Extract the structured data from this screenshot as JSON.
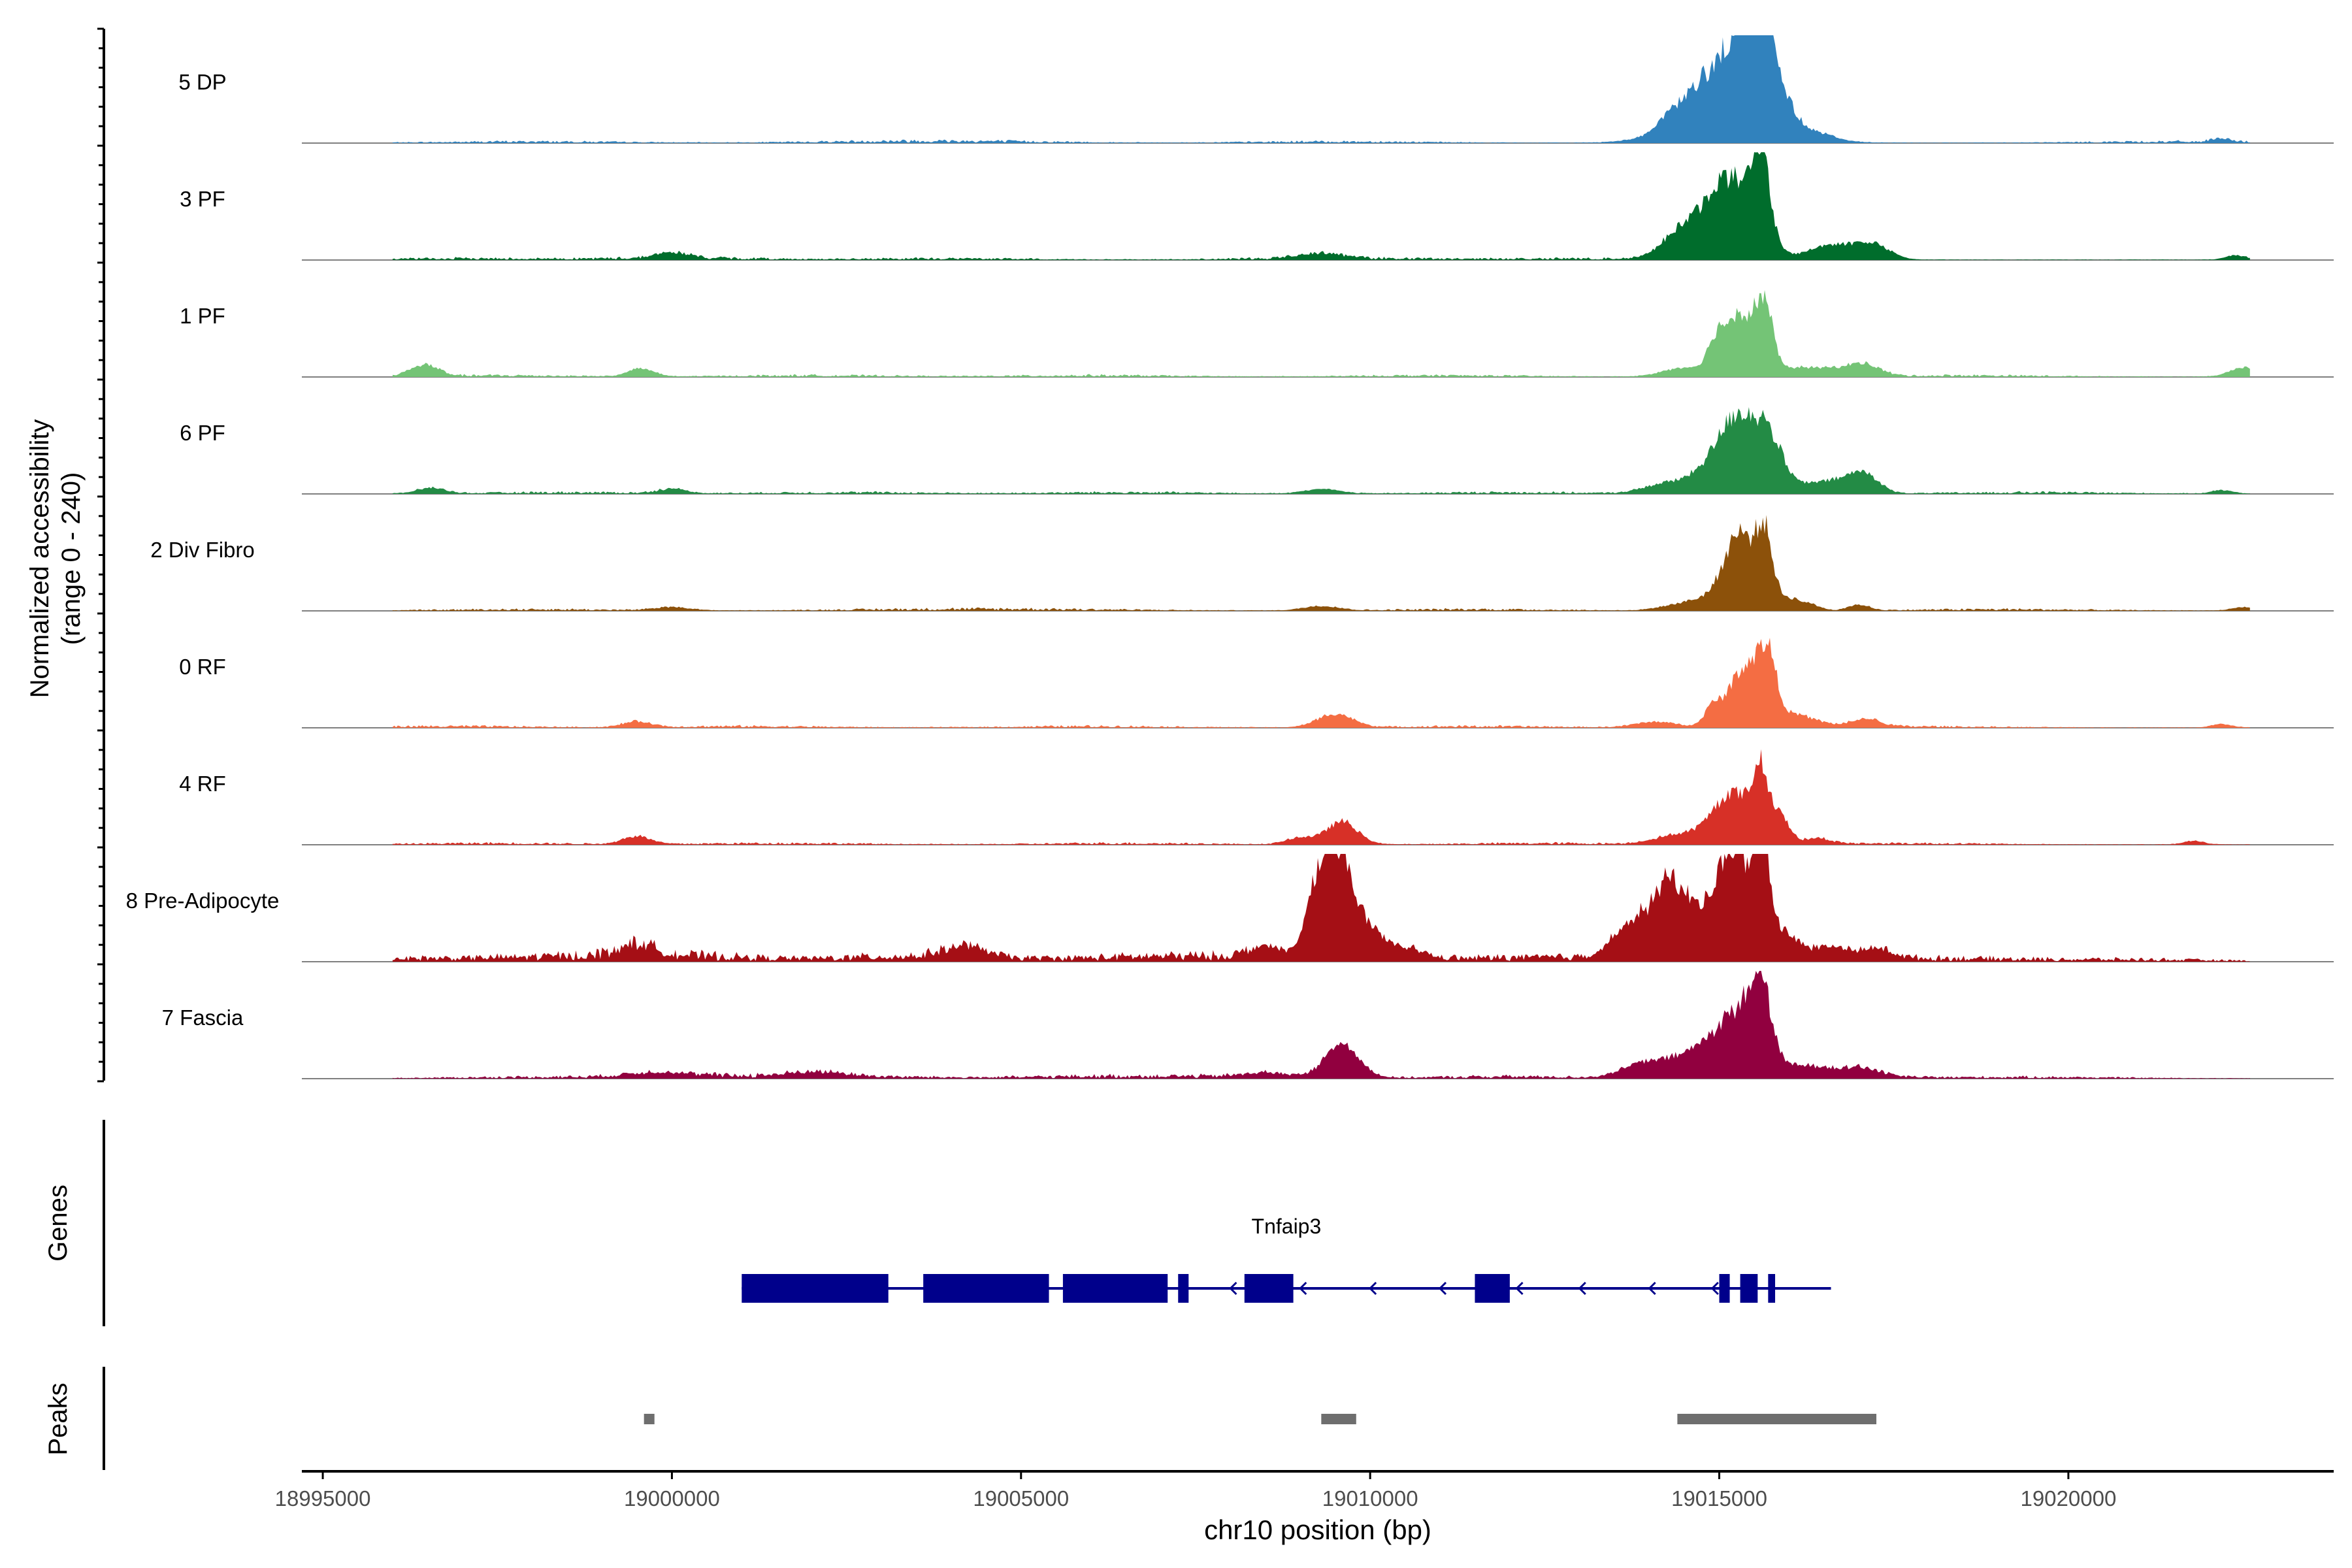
{
  "chart_data": {
    "type": "area",
    "title": "",
    "ylabel_line1": "Normalized accessibility",
    "ylabel_line2": "(range 0 - 240)",
    "xlabel": "chr10 position (bp)",
    "xlim": [
      18994700,
      19023800
    ],
    "ylim": [
      0,
      240
    ],
    "xticks": [
      18995000,
      19000000,
      19005000,
      19010000,
      19015000,
      19020000
    ],
    "xtick_labels": [
      "18995000",
      "19000000",
      "19005000",
      "19010000",
      "19015000",
      "19020000"
    ],
    "series": [
      {
        "name": "5 DP",
        "color": "#3182bd",
        "bg": [
          [
            18998000,
            2
          ],
          [
            19003000,
            2
          ],
          [
            19004500,
            2
          ],
          [
            19009500,
            2
          ],
          [
            19021500,
            2
          ]
        ],
        "peaks": [
          [
            19014300,
            180,
            6
          ],
          [
            19014700,
            250,
            8
          ],
          [
            19015000,
            450,
            18
          ],
          [
            19015200,
            650,
            38
          ],
          [
            19015450,
            300,
            55
          ],
          [
            19015600,
            130,
            48
          ],
          [
            19015800,
            220,
            14
          ],
          [
            19016500,
            200,
            3
          ],
          [
            19022200,
            150,
            3
          ]
        ]
      },
      {
        "name": "3 PF",
        "color": "#006d2c",
        "bg": [
          [
            18997000,
            2
          ],
          [
            19000100,
            3
          ],
          [
            19004000,
            2
          ],
          [
            19009400,
            3
          ],
          [
            19012800,
            2
          ]
        ],
        "peaks": [
          [
            19000000,
            250,
            5
          ],
          [
            19009300,
            300,
            5
          ],
          [
            19014400,
            250,
            14
          ],
          [
            19014900,
            450,
            18
          ],
          [
            19015200,
            350,
            58
          ],
          [
            19015600,
            120,
            70
          ],
          [
            19016500,
            250,
            10
          ],
          [
            19017000,
            300,
            11
          ],
          [
            19017300,
            200,
            6
          ],
          [
            19022400,
            150,
            4
          ]
        ]
      },
      {
        "name": "1 PF",
        "color": "#74c476",
        "bg": [
          [
            18997500,
            2
          ],
          [
            19002000,
            2
          ],
          [
            19006000,
            2
          ],
          [
            19011000,
            2
          ],
          [
            19018500,
            2
          ]
        ],
        "peaks": [
          [
            18996450,
            200,
            10
          ],
          [
            18999550,
            180,
            7
          ],
          [
            19014500,
            300,
            8
          ],
          [
            19014950,
            120,
            20
          ],
          [
            19015300,
            230,
            55
          ],
          [
            19015650,
            120,
            50
          ],
          [
            19016200,
            350,
            8
          ],
          [
            19016800,
            250,
            4
          ],
          [
            19017100,
            220,
            9
          ],
          [
            19022500,
            200,
            8
          ]
        ]
      },
      {
        "name": "6 PF",
        "color": "#238b45",
        "bg": [
          [
            18998500,
            2
          ],
          [
            19002500,
            2
          ],
          [
            19006500,
            2
          ],
          [
            19012000,
            2
          ],
          [
            19019500,
            2
          ]
        ],
        "peaks": [
          [
            18996550,
            200,
            5
          ],
          [
            19000000,
            200,
            4
          ],
          [
            19009300,
            250,
            4
          ],
          [
            19014200,
            300,
            8
          ],
          [
            19014700,
            250,
            10
          ],
          [
            19015000,
            230,
            22
          ],
          [
            19015300,
            230,
            55
          ],
          [
            19015700,
            200,
            48
          ],
          [
            19016300,
            300,
            8
          ],
          [
            19016800,
            250,
            9
          ],
          [
            19017100,
            200,
            14
          ],
          [
            19022200,
            150,
            3
          ]
        ]
      },
      {
        "name": "2 Div Fibro",
        "color": "#8c510a",
        "bg": [
          [
            18998000,
            2
          ],
          [
            19003500,
            2
          ],
          [
            19005500,
            2
          ],
          [
            19011500,
            2
          ],
          [
            19019000,
            2
          ]
        ],
        "peaks": [
          [
            19000000,
            250,
            3
          ],
          [
            19009300,
            250,
            4
          ],
          [
            19014500,
            300,
            6
          ],
          [
            19015000,
            250,
            12
          ],
          [
            19015300,
            200,
            62
          ],
          [
            19015650,
            120,
            62
          ],
          [
            19016000,
            150,
            10
          ],
          [
            19016300,
            150,
            5
          ],
          [
            19017000,
            150,
            5
          ],
          [
            19022500,
            150,
            3
          ]
        ]
      },
      {
        "name": "0 RF",
        "color": "#f46d43",
        "bg": [
          [
            18996800,
            2
          ],
          [
            19001000,
            2
          ],
          [
            19006000,
            2
          ],
          [
            19011500,
            2
          ],
          [
            19017500,
            2
          ]
        ],
        "peaks": [
          [
            18999500,
            200,
            5
          ],
          [
            19009500,
            250,
            12
          ],
          [
            19014100,
            300,
            5
          ],
          [
            19014900,
            120,
            14
          ],
          [
            19015400,
            250,
            55
          ],
          [
            19015700,
            120,
            42
          ],
          [
            19016100,
            300,
            10
          ],
          [
            19017100,
            200,
            7
          ],
          [
            19022200,
            150,
            3
          ]
        ]
      },
      {
        "name": "4 RF",
        "color": "#d73027",
        "bg": [
          [
            18997500,
            2
          ],
          [
            19001500,
            2
          ],
          [
            19006500,
            2
          ],
          [
            19012500,
            2
          ],
          [
            19017500,
            2
          ]
        ],
        "peaks": [
          [
            18999500,
            200,
            7
          ],
          [
            19009000,
            200,
            6
          ],
          [
            19009600,
            220,
            20
          ],
          [
            19014300,
            300,
            6
          ],
          [
            19014800,
            300,
            8
          ],
          [
            19015200,
            250,
            42
          ],
          [
            19015600,
            120,
            60
          ],
          [
            19015900,
            120,
            22
          ],
          [
            19016400,
            200,
            5
          ],
          [
            19021800,
            150,
            3
          ]
        ]
      },
      {
        "name": "8 Pre-Adipocyte",
        "color": "#a50f15",
        "bg": [
          [
            18996000,
            5
          ],
          [
            18998500,
            6
          ],
          [
            19000000,
            9
          ],
          [
            19003500,
            9
          ],
          [
            19006500,
            5
          ],
          [
            19008000,
            7
          ],
          [
            19011500,
            5
          ],
          [
            19013500,
            6
          ],
          [
            19016500,
            5
          ],
          [
            19018500,
            4
          ],
          [
            19021000,
            3
          ]
        ],
        "peaks": [
          [
            18999500,
            250,
            10
          ],
          [
            19004200,
            300,
            10
          ],
          [
            19008500,
            250,
            10
          ],
          [
            19009300,
            180,
            80
          ],
          [
            19009600,
            150,
            65
          ],
          [
            19009900,
            250,
            30
          ],
          [
            19010500,
            250,
            10
          ],
          [
            19013800,
            300,
            30
          ],
          [
            19014300,
            230,
            55
          ],
          [
            19014800,
            280,
            35
          ],
          [
            19015200,
            200,
            85
          ],
          [
            19015600,
            130,
            88
          ],
          [
            19015900,
            220,
            20
          ],
          [
            19016600,
            300,
            10
          ],
          [
            19017300,
            200,
            8
          ]
        ]
      },
      {
        "name": "7 Fascia",
        "color": "#91003f",
        "bg": [
          [
            18998000,
            2
          ],
          [
            19000500,
            4
          ],
          [
            19002500,
            3
          ],
          [
            19006000,
            3
          ],
          [
            19008000,
            3
          ],
          [
            19012000,
            3
          ],
          [
            19016500,
            3
          ],
          [
            19019500,
            2
          ]
        ],
        "peaks": [
          [
            18999800,
            400,
            4
          ],
          [
            19002100,
            400,
            4
          ],
          [
            19008500,
            300,
            4
          ],
          [
            19009600,
            240,
            30
          ],
          [
            19013900,
            300,
            12
          ],
          [
            19014500,
            300,
            15
          ],
          [
            19014900,
            250,
            20
          ],
          [
            19015300,
            250,
            50
          ],
          [
            19015600,
            150,
            65
          ],
          [
            19016200,
            350,
            10
          ],
          [
            19017000,
            300,
            8
          ]
        ]
      }
    ],
    "genes_label": "Genes",
    "gene": {
      "name": "Tnfaip3",
      "start": 19001000,
      "end": 19016600,
      "exons": [
        [
          19001000,
          19003100
        ],
        [
          19003600,
          19005400
        ],
        [
          19005600,
          19007100
        ],
        [
          19007250,
          19007400
        ],
        [
          19008200,
          19008900
        ],
        [
          19011500,
          19012000
        ],
        [
          19015000,
          19015150
        ],
        [
          19015300,
          19015550
        ],
        [
          19015700,
          19015800
        ]
      ],
      "arrows": [
        19008000,
        19009000,
        19010000,
        19011000,
        19012100,
        19013000,
        19014000,
        19014900
      ]
    },
    "peaks_label": "Peaks",
    "peak_regions": [
      [
        18999600,
        18999750
      ],
      [
        19009300,
        19009800
      ],
      [
        19014400,
        19017250
      ]
    ]
  }
}
